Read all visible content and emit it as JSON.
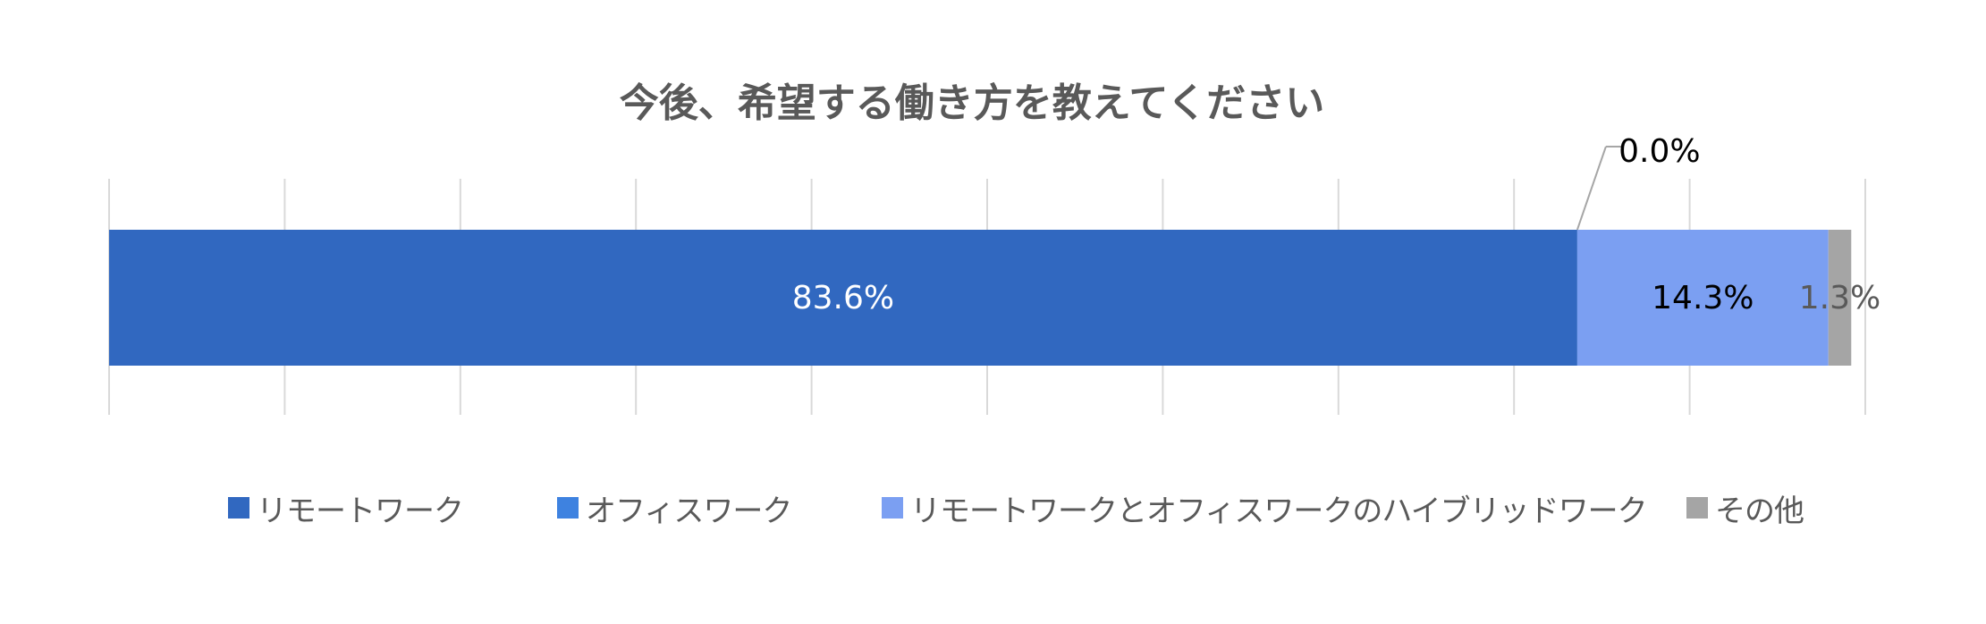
{
  "chart_data": {
    "type": "bar",
    "orientation": "horizontal",
    "stacked": true,
    "percent_stacked": true,
    "title": "今後、希望する働き方を教えてください",
    "categories": [
      ""
    ],
    "xlim": [
      0,
      100
    ],
    "gridlines": true,
    "legend_position": "bottom",
    "series": [
      {
        "name": "リモートワーク",
        "values": [
          83.6
        ],
        "label": "83.6%",
        "color": "#3168C0",
        "label_color": "#ffffff"
      },
      {
        "name": "オフィスワーク",
        "values": [
          0.0
        ],
        "label": "0.0%",
        "color": "#3E82E0",
        "label_color": "#000000"
      },
      {
        "name": "リモートワークとオフィスワークのハイブリッドワーク",
        "values": [
          14.3
        ],
        "label": "14.3%",
        "color": "#7B9FF2",
        "label_color": "#000000"
      },
      {
        "name": "その他",
        "values": [
          1.3
        ],
        "label": "1.3%",
        "color": "#A5A5A5",
        "label_color": "#595959"
      }
    ]
  }
}
